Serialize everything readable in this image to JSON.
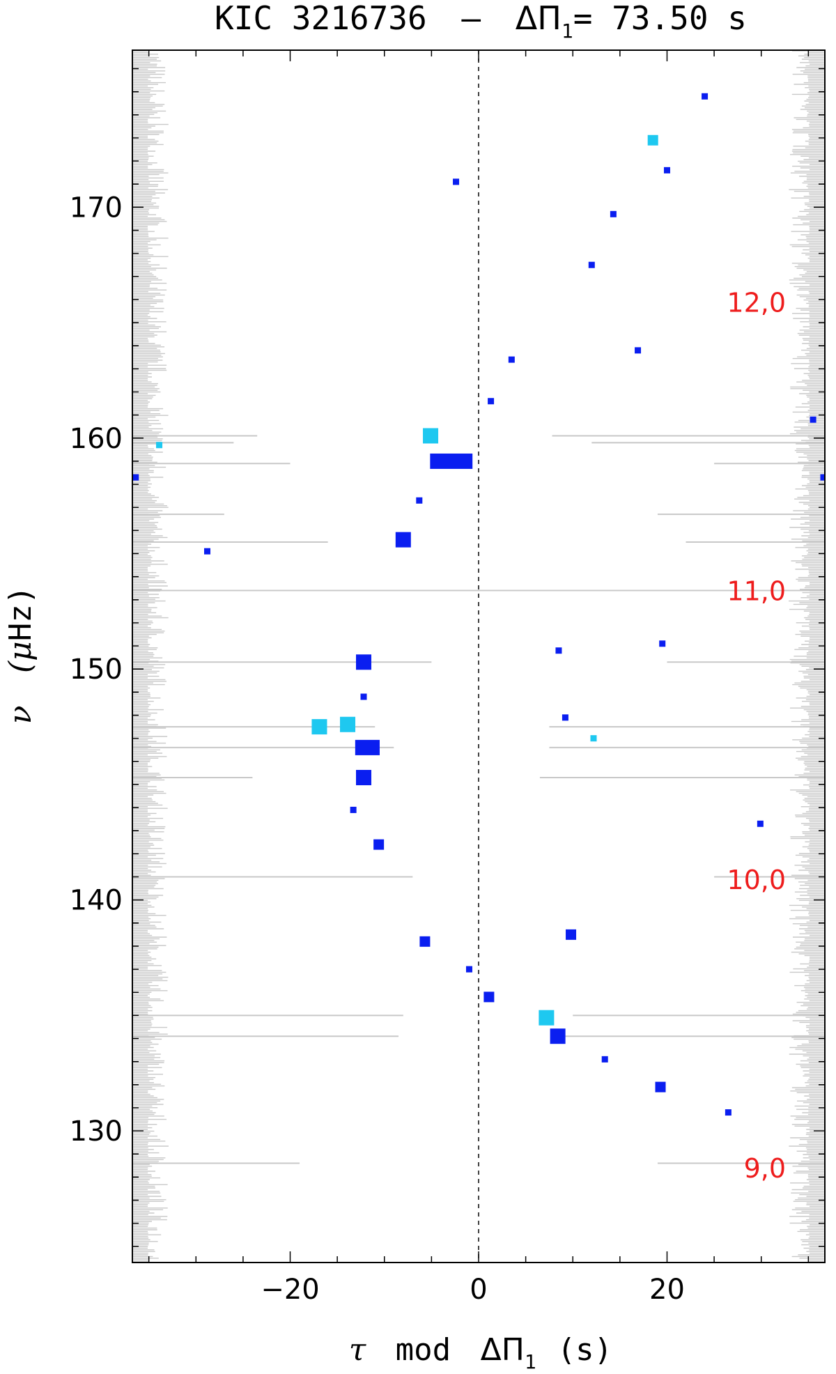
{
  "chart_data": {
    "type": "scatter",
    "title": "KIC 3216736  –  ΔΠ₁= 73.50 s",
    "title_parts": {
      "star": "KIC 3216736",
      "dash": "–",
      "delta_pi": "ΔΠ",
      "subscript": "1",
      "equals_value": "= 73.50 s"
    },
    "xlabel": "τ mod ΔΠ₁ (s)",
    "xlabel_parts": {
      "tau": "τ",
      "mod": "mod",
      "delta_pi": "ΔΠ",
      "subscript": "1",
      "unit": "(s)"
    },
    "ylabel": "ν (μHz)",
    "ylabel_parts": {
      "nu": "ν",
      "mu": "μ",
      "unit": "Hz"
    },
    "xlim": [
      -36.75,
      36.75
    ],
    "ylim": [
      124.3,
      176.8
    ],
    "xticks_major": [
      -20,
      0,
      20
    ],
    "xtick_labels": [
      "−20",
      "0",
      "20"
    ],
    "yticks_major": [
      130,
      140,
      150,
      160,
      170
    ],
    "ytick_labels": [
      "130",
      "140",
      "150",
      "160",
      "170"
    ],
    "vline_x": 0,
    "colors": {
      "dark_blue": "#0a1ef0",
      "light_blue": "#1ec8f0",
      "spectrum_gray": "#c8c8c8",
      "annotation_red": "#ee1c1c",
      "axis": "#000000"
    },
    "annotations": [
      {
        "text": "12,0",
        "y": 165.9
      },
      {
        "text": "11,0",
        "y": 153.4
      },
      {
        "text": "10,0",
        "y": 140.9
      },
      {
        "text": "9,0",
        "y": 128.4
      }
    ],
    "series": [
      {
        "color_key": "dark_blue",
        "points": [
          {
            "x": 24.0,
            "y": 174.8,
            "size": 1
          },
          {
            "x": 20.0,
            "y": 171.6,
            "size": 1
          },
          {
            "x": -2.4,
            "y": 171.1,
            "size": 1
          },
          {
            "x": 14.3,
            "y": 169.7,
            "size": 1
          },
          {
            "x": 12.0,
            "y": 167.5,
            "size": 1
          },
          {
            "x": 16.9,
            "y": 163.8,
            "size": 1
          },
          {
            "x": 3.5,
            "y": 163.4,
            "size": 1
          },
          {
            "x": 1.3,
            "y": 161.6,
            "size": 1
          },
          {
            "x": 35.5,
            "y": 160.8,
            "size": 1
          },
          {
            "x": -2.9,
            "y": 159.0,
            "size": 3,
            "w": 4.5
          },
          {
            "x": -36.4,
            "y": 158.3,
            "size": 1
          },
          {
            "x": 36.6,
            "y": 158.3,
            "size": 1
          },
          {
            "x": -6.3,
            "y": 157.3,
            "size": 1
          },
          {
            "x": -8.0,
            "y": 155.6,
            "size": 3
          },
          {
            "x": -28.8,
            "y": 155.1,
            "size": 1
          },
          {
            "x": 8.5,
            "y": 150.8,
            "size": 1
          },
          {
            "x": 19.5,
            "y": 151.1,
            "size": 1
          },
          {
            "x": -12.2,
            "y": 150.3,
            "size": 3
          },
          {
            "x": -12.2,
            "y": 148.8,
            "size": 1
          },
          {
            "x": 9.2,
            "y": 147.9,
            "size": 1
          },
          {
            "x": -11.8,
            "y": 146.6,
            "size": 3,
            "w": 2.6
          },
          {
            "x": -12.2,
            "y": 145.3,
            "size": 3
          },
          {
            "x": -13.3,
            "y": 143.9,
            "size": 1
          },
          {
            "x": 29.9,
            "y": 143.3,
            "size": 1
          },
          {
            "x": -10.6,
            "y": 142.4,
            "size": 2
          },
          {
            "x": 9.8,
            "y": 138.5,
            "size": 2
          },
          {
            "x": -5.7,
            "y": 138.2,
            "size": 2
          },
          {
            "x": -1.0,
            "y": 137.0,
            "size": 1
          },
          {
            "x": 1.1,
            "y": 135.8,
            "size": 2
          },
          {
            "x": 8.4,
            "y": 134.1,
            "size": 3
          },
          {
            "x": 13.4,
            "y": 133.1,
            "size": 1
          },
          {
            "x": 19.3,
            "y": 131.9,
            "size": 2
          },
          {
            "x": 26.5,
            "y": 130.8,
            "size": 1
          }
        ]
      },
      {
        "color_key": "light_blue",
        "points": [
          {
            "x": 18.5,
            "y": 172.9,
            "size": 2
          },
          {
            "x": -5.1,
            "y": 160.1,
            "size": 3
          },
          {
            "x": -33.9,
            "y": 159.7,
            "size": 1
          },
          {
            "x": -16.9,
            "y": 147.5,
            "size": 3
          },
          {
            "x": -13.9,
            "y": 147.6,
            "size": 3
          },
          {
            "x": 12.2,
            "y": 147.0,
            "size": 1
          },
          {
            "x": 7.2,
            "y": 134.9,
            "size": 3
          }
        ]
      }
    ],
    "spectrum_long_lines": [
      {
        "y": 160.1,
        "left_end": -23.5,
        "right_start": 7.8
      },
      {
        "y": 159.8,
        "left_end": -26.0,
        "right_start": 12.0
      },
      {
        "y": 158.9,
        "left_end": -20.0,
        "right_start": 25.0
      },
      {
        "y": 156.7,
        "left_end": -27.0,
        "right_start": 19.0
      },
      {
        "y": 155.5,
        "left_end": -16.0,
        "right_start": 22.0
      },
      {
        "y": 153.4,
        "left_end": 36.0,
        "right_start": -36.0
      },
      {
        "y": 150.3,
        "left_end": -5.0,
        "right_start": 20.0
      },
      {
        "y": 147.5,
        "left_end": -11.0,
        "right_start": 7.5
      },
      {
        "y": 146.6,
        "left_end": -9.0,
        "right_start": 7.5
      },
      {
        "y": 145.3,
        "left_end": -24.0,
        "right_start": 6.5
      },
      {
        "y": 141.0,
        "left_end": -7.0,
        "right_start": 25.0
      },
      {
        "y": 135.0,
        "left_end": -8.0,
        "right_start": 10.0
      },
      {
        "y": 134.1,
        "left_end": -8.5,
        "right_start": 8.0
      },
      {
        "y": 128.6,
        "left_end": -19.0,
        "right_start": 19.0
      }
    ]
  }
}
